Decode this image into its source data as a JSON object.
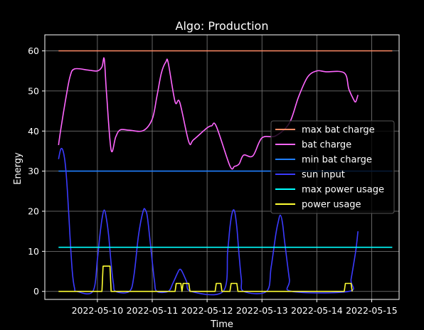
{
  "chart_data": {
    "type": "line",
    "title": "Algo: Production",
    "xlabel": "Time",
    "ylabel": "Energy",
    "xlim": [
      "2022-05-09 01:00",
      "2022-05-15 12:00"
    ],
    "ylim": [
      -2,
      64
    ],
    "x_ticks": [
      "2022-05-10",
      "2022-05-11",
      "2022-05-12",
      "2022-05-13",
      "2022-05-14",
      "2022-05-15"
    ],
    "y_ticks": [
      0,
      10,
      20,
      30,
      40,
      50,
      60
    ],
    "grid": true,
    "legend_position": "center-right",
    "series": [
      {
        "name": "max bat charge",
        "color": "#ff8a65",
        "points": [
          [
            "2022-05-09 07:00",
            60
          ],
          [
            "2022-05-15 09:00",
            60
          ]
        ]
      },
      {
        "name": "bat charge",
        "color": "#ff66ff",
        "points": [
          [
            "2022-05-09 07:00",
            36.5
          ],
          [
            "2022-05-09 08:00",
            40.5
          ],
          [
            "2022-05-09 10:00",
            47.5
          ],
          [
            "2022-05-09 12:00",
            53.5
          ],
          [
            "2022-05-09 14:00",
            55.5
          ],
          [
            "2022-05-09 20:00",
            55.2
          ],
          [
            "2022-05-10 00:00",
            55.0
          ],
          [
            "2022-05-10 02:00",
            56.0
          ],
          [
            "2022-05-10 03:00",
            58.0
          ],
          [
            "2022-05-10 04:00",
            49.5
          ],
          [
            "2022-05-10 06:00",
            35.3
          ],
          [
            "2022-05-10 08:00",
            38.5
          ],
          [
            "2022-05-10 10:00",
            40.3
          ],
          [
            "2022-05-10 14:00",
            40.2
          ],
          [
            "2022-05-10 20:00",
            40.1
          ],
          [
            "2022-05-11 00:00",
            43.0
          ],
          [
            "2022-05-11 02:00",
            48.5
          ],
          [
            "2022-05-11 04:00",
            54.5
          ],
          [
            "2022-05-11 06:00",
            57.3
          ],
          [
            "2022-05-11 07:00",
            57.0
          ],
          [
            "2022-05-11 10:00",
            47.3
          ],
          [
            "2022-05-11 12:00",
            47.2
          ],
          [
            "2022-05-11 16:00",
            37.3
          ],
          [
            "2022-05-11 18:00",
            37.8
          ],
          [
            "2022-05-12 00:00",
            40.8
          ],
          [
            "2022-05-12 02:00",
            41.3
          ],
          [
            "2022-05-12 04:00",
            41.2
          ],
          [
            "2022-05-12 10:00",
            31.3
          ],
          [
            "2022-05-12 12:00",
            31.2
          ],
          [
            "2022-05-12 14:00",
            31.8
          ],
          [
            "2022-05-12 16:00",
            34.0
          ],
          [
            "2022-05-12 20:00",
            33.8
          ],
          [
            "2022-05-13 00:00",
            38.3
          ],
          [
            "2022-05-13 06:00",
            38.8
          ],
          [
            "2022-05-13 12:00",
            42.0
          ],
          [
            "2022-05-13 16:00",
            48.5
          ],
          [
            "2022-05-13 20:00",
            53.5
          ],
          [
            "2022-05-14 00:00",
            55.0
          ],
          [
            "2022-05-14 04:00",
            54.8
          ],
          [
            "2022-05-14 12:00",
            54.5
          ],
          [
            "2022-05-14 14:00",
            50.5
          ],
          [
            "2022-05-14 16:00",
            48.0
          ],
          [
            "2022-05-14 17:00",
            47.3
          ],
          [
            "2022-05-14 18:00",
            49.0
          ]
        ]
      },
      {
        "name": "min bat charge",
        "color": "#1f7fff",
        "points": [
          [
            "2022-05-09 07:00",
            30
          ],
          [
            "2022-05-15 09:00",
            30
          ]
        ]
      },
      {
        "name": "sun input",
        "color": "#3b3bff",
        "points": [
          [
            "2022-05-09 07:00",
            33.0
          ],
          [
            "2022-05-09 08:00",
            35.5
          ],
          [
            "2022-05-09 09:00",
            35.0
          ],
          [
            "2022-05-09 10:00",
            31.5
          ],
          [
            "2022-05-09 11:00",
            24.0
          ],
          [
            "2022-05-09 12:00",
            14.0
          ],
          [
            "2022-05-09 13:00",
            5.0
          ],
          [
            "2022-05-09 14:00",
            0.8
          ],
          [
            "2022-05-09 15:00",
            0
          ],
          [
            "2022-05-09 22:00",
            0
          ],
          [
            "2022-05-10 00:00",
            8.0
          ],
          [
            "2022-05-10 01:00",
            13.5
          ],
          [
            "2022-05-10 02:00",
            18.0
          ],
          [
            "2022-05-10 03:00",
            20.3
          ],
          [
            "2022-05-10 04:00",
            18.0
          ],
          [
            "2022-05-10 05:00",
            13.5
          ],
          [
            "2022-05-10 06:00",
            7.0
          ],
          [
            "2022-05-10 07:00",
            2.0
          ],
          [
            "2022-05-10 08:00",
            0
          ],
          [
            "2022-05-10 14:00",
            0
          ],
          [
            "2022-05-10 16:00",
            4.0
          ],
          [
            "2022-05-10 18:00",
            14.0
          ],
          [
            "2022-05-10 20:00",
            20.0
          ],
          [
            "2022-05-10 21:00",
            20.3
          ],
          [
            "2022-05-10 22:00",
            18.0
          ],
          [
            "2022-05-11 00:00",
            7.5
          ],
          [
            "2022-05-11 01:00",
            2.5
          ],
          [
            "2022-05-11 02:00",
            0
          ],
          [
            "2022-05-11 07:00",
            0
          ],
          [
            "2022-05-11 09:00",
            2.0
          ],
          [
            "2022-05-11 11:00",
            4.5
          ],
          [
            "2022-05-11 12:00",
            5.5
          ],
          [
            "2022-05-11 13:00",
            5.0
          ],
          [
            "2022-05-11 15:00",
            2.5
          ],
          [
            "2022-05-11 17:00",
            0
          ],
          [
            "2022-05-12 07:00",
            0
          ],
          [
            "2022-05-12 09:00",
            10.0
          ],
          [
            "2022-05-12 10:00",
            16.0
          ],
          [
            "2022-05-12 11:00",
            19.7
          ],
          [
            "2022-05-12 12:00",
            20.0
          ],
          [
            "2022-05-12 13:00",
            16.0
          ],
          [
            "2022-05-12 14:00",
            9.0
          ],
          [
            "2022-05-12 15:00",
            3.0
          ],
          [
            "2022-05-12 16:00",
            0
          ],
          [
            "2022-05-13 02:00",
            0
          ],
          [
            "2022-05-13 04:00",
            6.0
          ],
          [
            "2022-05-13 06:00",
            14.0
          ],
          [
            "2022-05-13 07:00",
            17.0
          ],
          [
            "2022-05-13 08:00",
            19.0
          ],
          [
            "2022-05-13 09:00",
            17.0
          ],
          [
            "2022-05-13 10:00",
            12.0
          ],
          [
            "2022-05-13 12:00",
            3.0
          ],
          [
            "2022-05-13 13:00",
            0
          ],
          [
            "2022-05-14 14:00",
            0
          ],
          [
            "2022-05-14 15:00",
            3.0
          ],
          [
            "2022-05-14 17:00",
            10.0
          ],
          [
            "2022-05-14 18:00",
            15.0
          ]
        ]
      },
      {
        "name": "max power usage",
        "color": "#00ffff",
        "points": [
          [
            "2022-05-09 07:00",
            11
          ],
          [
            "2022-05-15 09:00",
            11
          ]
        ]
      },
      {
        "name": "power usage",
        "color": "#ffff33",
        "points": [
          [
            "2022-05-09 07:00",
            0
          ],
          [
            "2022-05-10 02:00",
            0
          ],
          [
            "2022-05-10 02:30",
            6.3
          ],
          [
            "2022-05-10 05:30",
            6.3
          ],
          [
            "2022-05-10 06:00",
            0
          ],
          [
            "2022-05-11 10:00",
            0
          ],
          [
            "2022-05-11 10:30",
            2.0
          ],
          [
            "2022-05-11 12:30",
            2.0
          ],
          [
            "2022-05-11 13:00",
            0
          ],
          [
            "2022-05-11 13:30",
            2.0
          ],
          [
            "2022-05-11 16:00",
            2.0
          ],
          [
            "2022-05-11 16:30",
            0
          ],
          [
            "2022-05-12 03:30",
            0
          ],
          [
            "2022-05-12 04:00",
            2.0
          ],
          [
            "2022-05-12 06:00",
            2.0
          ],
          [
            "2022-05-12 06:30",
            0
          ],
          [
            "2022-05-12 10:00",
            0
          ],
          [
            "2022-05-12 10:30",
            2.0
          ],
          [
            "2022-05-12 13:00",
            2.0
          ],
          [
            "2022-05-12 13:30",
            0
          ],
          [
            "2022-05-14 12:00",
            0
          ],
          [
            "2022-05-14 12:30",
            2.0
          ],
          [
            "2022-05-14 15:00",
            2.0
          ],
          [
            "2022-05-14 15:30",
            0
          ]
        ]
      }
    ]
  }
}
